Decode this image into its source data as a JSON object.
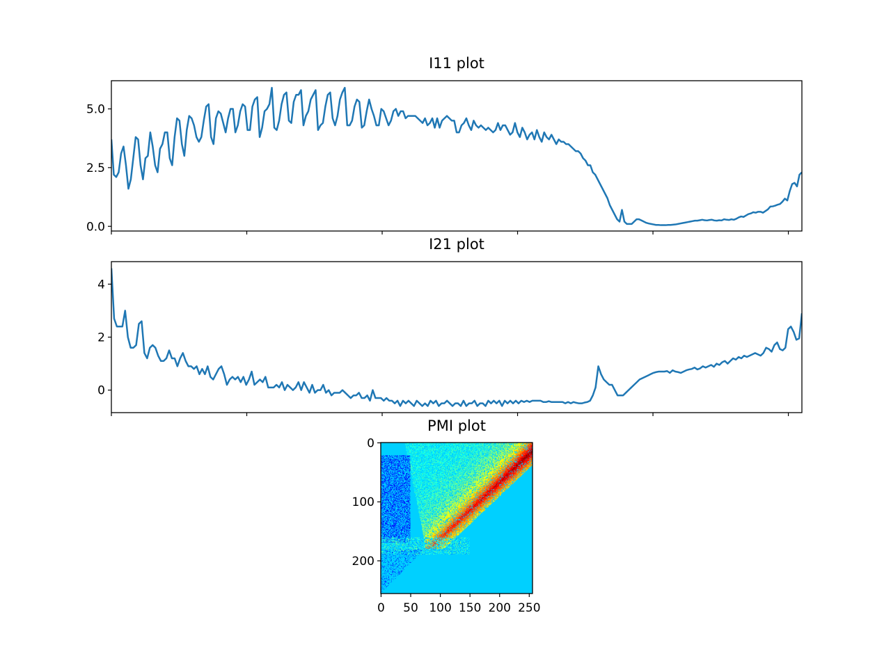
{
  "figure": {
    "background": "#ffffff",
    "line_color": "#1f77b4"
  },
  "chart_data": [
    {
      "type": "line",
      "title": "I11 plot",
      "xlabel": "",
      "ylabel": "",
      "xlim": [
        0,
        255
      ],
      "ylim": [
        -0.2,
        6.2
      ],
      "yticks": [
        0.0,
        2.5,
        5.0
      ],
      "ytick_labels": [
        "0.0",
        "2.5",
        "5.0"
      ],
      "xticks": [
        0,
        50,
        100,
        150,
        200,
        250
      ],
      "xtick_labels_visible": false,
      "grid": false,
      "series": [
        {
          "values": [
            3.7,
            2.2,
            2.1,
            2.3,
            3.1,
            3.4,
            2.6,
            1.6,
            2.0,
            2.9,
            3.8,
            3.7,
            2.6,
            2.0,
            2.9,
            3.0,
            4.0,
            3.4,
            2.6,
            2.3,
            3.3,
            3.5,
            4.0,
            4.0,
            2.9,
            2.6,
            3.8,
            4.6,
            4.5,
            3.5,
            3.0,
            4.1,
            4.7,
            4.6,
            4.3,
            3.8,
            3.6,
            3.8,
            4.5,
            5.1,
            5.2,
            3.8,
            3.5,
            4.6,
            4.9,
            4.8,
            4.4,
            4.0,
            4.6,
            5.0,
            5.0,
            4.0,
            4.3,
            4.9,
            5.2,
            5.1,
            4.1,
            4.1,
            5.1,
            5.4,
            5.5,
            3.8,
            4.2,
            4.9,
            5.0,
            5.2,
            5.9,
            4.2,
            4.1,
            4.5,
            5.2,
            5.6,
            5.7,
            4.5,
            4.4,
            5.3,
            5.6,
            5.6,
            5.8,
            4.3,
            4.7,
            4.9,
            5.4,
            5.6,
            5.8,
            4.1,
            4.3,
            4.4,
            5.1,
            5.6,
            5.7,
            4.6,
            4.3,
            4.7,
            5.4,
            5.7,
            5.9,
            4.3,
            4.3,
            4.5,
            5.1,
            5.4,
            5.3,
            4.2,
            4.3,
            4.9,
            5.4,
            5.0,
            4.7,
            4.3,
            4.3,
            5.0,
            4.9,
            4.6,
            4.3,
            4.5,
            4.9,
            5.0,
            4.7,
            4.9,
            4.9,
            4.6,
            4.7,
            4.7,
            4.7,
            4.7,
            4.6,
            4.5,
            4.4,
            4.6,
            4.3,
            4.4,
            4.6,
            4.2,
            4.6,
            4.2,
            4.5,
            4.6,
            4.7,
            4.6,
            4.5,
            4.5,
            4.0,
            4.0,
            4.3,
            4.4,
            4.6,
            4.3,
            4.1,
            4.5,
            4.3,
            4.2,
            4.3,
            4.2,
            4.1,
            4.2,
            4.1,
            4.0,
            4.1,
            4.4,
            4.1,
            4.3,
            4.3,
            4.1,
            3.9,
            4.0,
            4.4,
            4.0,
            3.8,
            4.2,
            4.0,
            3.7,
            3.9,
            4.0,
            3.7,
            4.1,
            3.8,
            3.6,
            4.0,
            3.8,
            3.7,
            3.9,
            3.7,
            3.5,
            3.7,
            3.6,
            3.6,
            3.5,
            3.5,
            3.4,
            3.3,
            3.2,
            3.2,
            3.1,
            2.9,
            2.8,
            2.6,
            2.6,
            2.3,
            2.2,
            2.0,
            1.8,
            1.6,
            1.4,
            1.2,
            0.9,
            0.7,
            0.5,
            0.3,
            0.2,
            0.7,
            0.2,
            0.1,
            0.1,
            0.1,
            0.2,
            0.3,
            0.3,
            0.25,
            0.2,
            0.15,
            0.12,
            0.1,
            0.08,
            0.06,
            0.06,
            0.05,
            0.05,
            0.05,
            0.06,
            0.06,
            0.07,
            0.08,
            0.1,
            0.12,
            0.14,
            0.16,
            0.18,
            0.2,
            0.22,
            0.24,
            0.24,
            0.26,
            0.28,
            0.26,
            0.25,
            0.27,
            0.28,
            0.25,
            0.24,
            0.26,
            0.25,
            0.3,
            0.28,
            0.27,
            0.3,
            0.28,
            0.32,
            0.38,
            0.42,
            0.4,
            0.46,
            0.52,
            0.55,
            0.6,
            0.58,
            0.62,
            0.62,
            0.58,
            0.65,
            0.72,
            0.84,
            0.85,
            0.88,
            0.92,
            0.95,
            1.05,
            1.18,
            1.1,
            1.5,
            1.8,
            1.85,
            1.7,
            2.2,
            2.3
          ]
        }
      ]
    },
    {
      "type": "line",
      "title": "I21 plot",
      "xlabel": "",
      "ylabel": "",
      "xlim": [
        0,
        255
      ],
      "ylim": [
        -0.85,
        4.85
      ],
      "yticks": [
        0,
        2,
        4
      ],
      "ytick_labels": [
        "0",
        "2",
        "4"
      ],
      "xticks": [
        0,
        50,
        100,
        150,
        200,
        250
      ],
      "xtick_labels_visible": false,
      "grid": false,
      "series": [
        {
          "values": [
            4.6,
            2.7,
            2.4,
            2.4,
            2.4,
            3.0,
            2.0,
            1.6,
            1.6,
            1.7,
            2.5,
            2.6,
            1.4,
            1.2,
            1.6,
            1.7,
            1.6,
            1.3,
            1.1,
            1.1,
            1.2,
            1.5,
            1.2,
            1.2,
            0.9,
            1.2,
            1.4,
            1.1,
            0.9,
            0.9,
            0.8,
            0.9,
            0.6,
            0.8,
            0.6,
            0.9,
            0.5,
            0.4,
            0.6,
            0.8,
            0.9,
            0.6,
            0.2,
            0.4,
            0.5,
            0.4,
            0.5,
            0.3,
            0.5,
            0.2,
            0.4,
            0.7,
            0.2,
            0.3,
            0.4,
            0.3,
            0.5,
            0.1,
            0.1,
            0.1,
            0.2,
            0.1,
            0.3,
            0.0,
            0.2,
            0.1,
            0.0,
            0.1,
            0.3,
            0.0,
            0.3,
            0.1,
            -0.1,
            0.2,
            -0.1,
            0.0,
            0.0,
            0.2,
            -0.1,
            0.0,
            -0.2,
            -0.1,
            -0.1,
            -0.1,
            0.0,
            -0.1,
            -0.2,
            -0.3,
            -0.2,
            -0.2,
            -0.1,
            -0.3,
            -0.3,
            -0.2,
            -0.4,
            0.0,
            -0.3,
            -0.3,
            -0.3,
            -0.4,
            -0.3,
            -0.4,
            -0.4,
            -0.5,
            -0.4,
            -0.6,
            -0.4,
            -0.5,
            -0.4,
            -0.5,
            -0.6,
            -0.4,
            -0.5,
            -0.6,
            -0.5,
            -0.6,
            -0.4,
            -0.5,
            -0.4,
            -0.6,
            -0.5,
            -0.5,
            -0.4,
            -0.5,
            -0.6,
            -0.5,
            -0.5,
            -0.6,
            -0.4,
            -0.6,
            -0.5,
            -0.5,
            -0.4,
            -0.6,
            -0.5,
            -0.5,
            -0.6,
            -0.4,
            -0.5,
            -0.4,
            -0.5,
            -0.4,
            -0.6,
            -0.4,
            -0.5,
            -0.4,
            -0.5,
            -0.4,
            -0.5,
            -0.4,
            -0.45,
            -0.4,
            -0.45,
            -0.4,
            -0.4,
            -0.4,
            -0.4,
            -0.45,
            -0.45,
            -0.42,
            -0.45,
            -0.45,
            -0.45,
            -0.45,
            -0.45,
            -0.5,
            -0.45,
            -0.5,
            -0.45,
            -0.48,
            -0.5,
            -0.5,
            -0.47,
            -0.45,
            -0.4,
            -0.2,
            0.1,
            0.9,
            0.6,
            0.4,
            0.3,
            0.2,
            0.2,
            0.0,
            -0.2,
            -0.2,
            -0.2,
            -0.1,
            0.0,
            0.1,
            0.2,
            0.3,
            0.4,
            0.45,
            0.5,
            0.55,
            0.6,
            0.65,
            0.68,
            0.7,
            0.7,
            0.7,
            0.72,
            0.65,
            0.75,
            0.7,
            0.68,
            0.65,
            0.7,
            0.75,
            0.78,
            0.8,
            0.85,
            0.78,
            0.82,
            0.9,
            0.85,
            0.9,
            0.95,
            0.88,
            1.0,
            0.95,
            1.05,
            1.1,
            1.0,
            1.1,
            1.2,
            1.15,
            1.25,
            1.2,
            1.3,
            1.25,
            1.3,
            1.35,
            1.4,
            1.35,
            1.3,
            1.4,
            1.6,
            1.55,
            1.45,
            1.7,
            1.8,
            1.55,
            1.5,
            1.6,
            2.3,
            2.4,
            2.2,
            1.9,
            1.95,
            2.9
          ]
        }
      ]
    },
    {
      "type": "heatmap",
      "title": "PMI plot",
      "xlabel": "",
      "ylabel": "",
      "shape": [
        256,
        256
      ],
      "xlim": [
        0,
        255
      ],
      "ylim": [
        255,
        0
      ],
      "xticks": [
        0,
        50,
        100,
        150,
        200,
        250
      ],
      "xtick_labels": [
        "0",
        "50",
        "100",
        "150",
        "200",
        "250"
      ],
      "yticks": [
        0,
        100,
        200
      ],
      "ytick_labels": [
        "0",
        "100",
        "200"
      ],
      "colormap": "jet",
      "background_color": "#00d0ff",
      "grid": false
    }
  ]
}
